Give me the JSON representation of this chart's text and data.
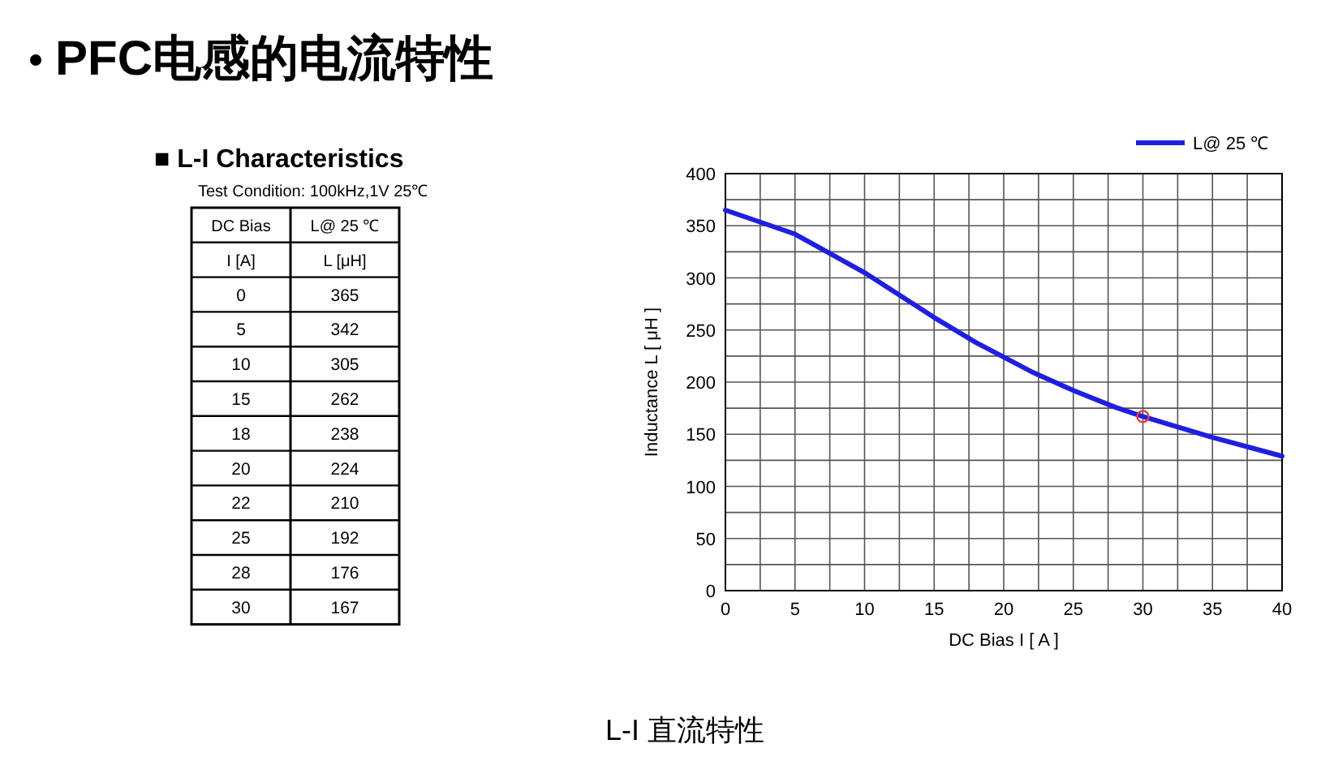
{
  "chart_data": [
    {
      "type": "other",
      "title": "PFC电感的电流特性",
      "subtitle": "■  L-I  Characteristics",
      "annotations": [
        "Test Condition:  100kHz,1V  25℃",
        "DC Bias",
        "L@ 25 ℃",
        "I [A]",
        "L [μH]"
      ],
      "categories": [
        "0",
        "5",
        "10",
        "15",
        "18",
        "20",
        "22",
        "25",
        "28",
        "30"
      ],
      "values": [
        365,
        342,
        305,
        262,
        238,
        224,
        210,
        192,
        176,
        167
      ],
      "data_labels": true
    },
    {
      "type": "line",
      "xlabel": "DC Bias I [ A ]",
      "ylabel": "Inductance  L  [ μH ]",
      "annotations": [
        "L-I 直流特性"
      ],
      "x": [
        0,
        5,
        10,
        15,
        18,
        20,
        22,
        25,
        28,
        30,
        35,
        40
      ],
      "series": [
        {
          "name": "L@ 25 ℃",
          "color": "#1f1fe0",
          "values": [
            365,
            342,
            305,
            262,
            238,
            224,
            210,
            192,
            176,
            167,
            147,
            129
          ]
        },
        {
          "type": "scatter",
          "marker": "circle",
          "color": "#e04040",
          "x": [
            30
          ],
          "values": [
            167
          ]
        }
      ],
      "xlim": [
        0,
        40
      ],
      "ylim": [
        0,
        400
      ],
      "xticks": [
        0,
        {
          "value": 2.5,
          "label": null
        },
        5,
        {
          "value": 7.5,
          "label": null
        },
        10,
        {
          "value": 12.5,
          "label": null
        },
        15,
        {
          "value": 17.5,
          "label": null
        },
        20,
        {
          "value": 22.5,
          "label": null
        },
        25,
        {
          "value": 27.5,
          "label": null
        },
        30,
        {
          "value": 32.5,
          "label": null
        },
        35,
        {
          "value": 37.5,
          "label": null
        },
        40
      ],
      "yticks": [
        0,
        {
          "value": 25,
          "label": null
        },
        50,
        {
          "value": 75,
          "label": null
        },
        100,
        {
          "value": 125,
          "label": null
        },
        150,
        {
          "value": 175,
          "label": null
        },
        200,
        {
          "value": 225,
          "label": null
        },
        250,
        {
          "value": 275,
          "label": null
        },
        300,
        {
          "value": 325,
          "label": null
        },
        350,
        {
          "value": 375,
          "label": null
        },
        400
      ],
      "grid": true,
      "legend": "top right",
      "line_style": "solid"
    }
  ]
}
